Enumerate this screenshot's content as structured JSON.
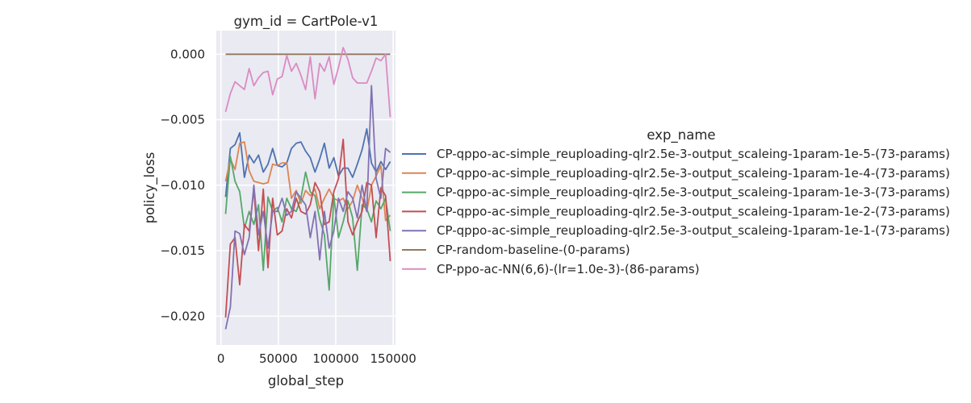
{
  "chart_data": {
    "type": "line",
    "title": "gym_id = CartPole-v1",
    "xlabel": "global_step",
    "ylabel": "policy_loss",
    "xlim": [
      -4000,
      152000
    ],
    "ylim": [
      -0.0222,
      0.0018
    ],
    "xticks": [
      0,
      50000,
      100000,
      150000
    ],
    "xtick_labels": [
      "0",
      "50000",
      "100000",
      "150000"
    ],
    "yticks": [
      -0.02,
      -0.015,
      -0.01,
      -0.005,
      0.0
    ],
    "ytick_labels": [
      "−0.020",
      "−0.015",
      "−0.010",
      "−0.005",
      "0.000"
    ],
    "grid": true,
    "plot_background": "#eaeaf2",
    "legend": {
      "title": "exp_name",
      "placement": "outside-right"
    },
    "x": [
      4096,
      8192,
      12288,
      16384,
      20480,
      24576,
      28672,
      32768,
      36864,
      40960,
      45056,
      49152,
      53248,
      57344,
      61440,
      65536,
      69632,
      73728,
      77824,
      81920,
      86016,
      90112,
      94208,
      98304,
      102400,
      106496,
      110592,
      114688,
      118784,
      122880,
      126976,
      131072,
      135168,
      139264,
      143360,
      147456
    ],
    "series": [
      {
        "name": "CP-qppo-ac-simple_reuploading-qlr2.5e-3-output_scaleing-1param-1e-5-(73-params)",
        "color": "#4c72b0",
        "values": [
          -0.0109,
          -0.0072,
          -0.0069,
          -0.006,
          -0.0094,
          -0.0077,
          -0.0083,
          -0.0077,
          -0.009,
          -0.0084,
          -0.0072,
          -0.0085,
          -0.0086,
          -0.0083,
          -0.0072,
          -0.0068,
          -0.0067,
          -0.0074,
          -0.0079,
          -0.009,
          -0.008,
          -0.0068,
          -0.0087,
          -0.0079,
          -0.0093,
          -0.0087,
          -0.0087,
          -0.0094,
          -0.0084,
          -0.0073,
          -0.0057,
          -0.0083,
          -0.009,
          -0.0082,
          -0.0088,
          -0.0082
        ]
      },
      {
        "name": "CP-qppo-ac-simple_reuploading-qlr2.5e-3-output_scaleing-1param-1e-4-(73-params)",
        "color": "#dd8452",
        "values": [
          -0.0097,
          -0.008,
          -0.0088,
          -0.0068,
          -0.0067,
          -0.0089,
          -0.0097,
          -0.0098,
          -0.0099,
          -0.0098,
          -0.0084,
          -0.0085,
          -0.0083,
          -0.0083,
          -0.011,
          -0.0104,
          -0.0114,
          -0.0104,
          -0.0108,
          -0.0103,
          -0.0118,
          -0.011,
          -0.0103,
          -0.011,
          -0.0112,
          -0.011,
          -0.0118,
          -0.0112,
          -0.01,
          -0.011,
          -0.012,
          -0.01,
          -0.0093,
          -0.0085,
          -0.0127,
          -0.0123
        ]
      },
      {
        "name": "CP-qppo-ac-simple_reuploading-qlr2.5e-3-output_scaleing-1param-1e-3-(73-params)",
        "color": "#55a868",
        "values": [
          -0.0122,
          -0.0078,
          -0.0097,
          -0.0105,
          -0.0133,
          -0.012,
          -0.013,
          -0.0115,
          -0.0165,
          -0.0109,
          -0.012,
          -0.0117,
          -0.0128,
          -0.011,
          -0.0118,
          -0.012,
          -0.011,
          -0.009,
          -0.0105,
          -0.0108,
          -0.0126,
          -0.0138,
          -0.018,
          -0.0108,
          -0.014,
          -0.0128,
          -0.0112,
          -0.0125,
          -0.0165,
          -0.0115,
          -0.0118,
          -0.0128,
          -0.0112,
          -0.0118,
          -0.011,
          -0.0135
        ]
      },
      {
        "name": "CP-qppo-ac-simple_reuploading-qlr2.5e-3-output_scaleing-1param-1e-2-(73-params)",
        "color": "#c44e52",
        "values": [
          -0.0201,
          -0.0145,
          -0.014,
          -0.0176,
          -0.013,
          -0.0135,
          -0.0103,
          -0.015,
          -0.0103,
          -0.0163,
          -0.011,
          -0.0138,
          -0.0135,
          -0.0118,
          -0.0125,
          -0.011,
          -0.012,
          -0.0122,
          -0.0115,
          -0.0098,
          -0.0105,
          -0.013,
          -0.0128,
          -0.0105,
          -0.0095,
          -0.0065,
          -0.0128,
          -0.0138,
          -0.0128,
          -0.012,
          -0.0098,
          -0.01,
          -0.014,
          -0.0102,
          -0.0108,
          -0.0158
        ]
      },
      {
        "name": "CP-qppo-ac-simple_reuploading-qlr2.5e-3-output_scaleing-1param-1e-1-(73-params)",
        "color": "#8172b3",
        "values": [
          -0.021,
          -0.0193,
          -0.0135,
          -0.0137,
          -0.0153,
          -0.014,
          -0.01,
          -0.0138,
          -0.012,
          -0.0148,
          -0.012,
          -0.012,
          -0.011,
          -0.0123,
          -0.012,
          -0.0105,
          -0.011,
          -0.0115,
          -0.014,
          -0.012,
          -0.0157,
          -0.012,
          -0.0148,
          -0.0135,
          -0.011,
          -0.012,
          -0.0105,
          -0.011,
          -0.0125,
          -0.01,
          -0.012,
          -0.0024,
          -0.0095,
          -0.011,
          -0.0072,
          -0.0075
        ]
      },
      {
        "name": "CP-random-baseline-(0-params)",
        "color": "#937860",
        "values": [
          0.0,
          0.0,
          0.0,
          0.0,
          0.0,
          0.0,
          0.0,
          0.0,
          0.0,
          0.0,
          0.0,
          0.0,
          0.0,
          0.0,
          0.0,
          0.0,
          0.0,
          0.0,
          0.0,
          0.0,
          0.0,
          0.0,
          0.0,
          0.0,
          0.0,
          0.0,
          0.0,
          0.0,
          0.0,
          0.0,
          0.0,
          0.0,
          0.0,
          0.0,
          0.0,
          0.0
        ]
      },
      {
        "name": "CP-ppo-ac-NN(6,6)-(lr=1.0e-3)-(86-params)",
        "color": "#da8bc3",
        "values": [
          -0.0044,
          -0.003,
          -0.0021,
          -0.0024,
          -0.0027,
          -0.0011,
          -0.0024,
          -0.0018,
          -0.0014,
          -0.0013,
          -0.0031,
          -0.0019,
          -0.0017,
          -0.0001,
          -0.0013,
          -0.0007,
          -0.0016,
          -0.0027,
          -0.0002,
          -0.0034,
          -0.0007,
          -0.0013,
          -0.0002,
          -0.0023,
          -0.001,
          0.0005,
          -0.0004,
          -0.0018,
          -0.0022,
          -0.0022,
          -0.0022,
          -0.0013,
          -0.0003,
          -0.0005,
          0.0,
          -0.0048
        ]
      }
    ]
  }
}
